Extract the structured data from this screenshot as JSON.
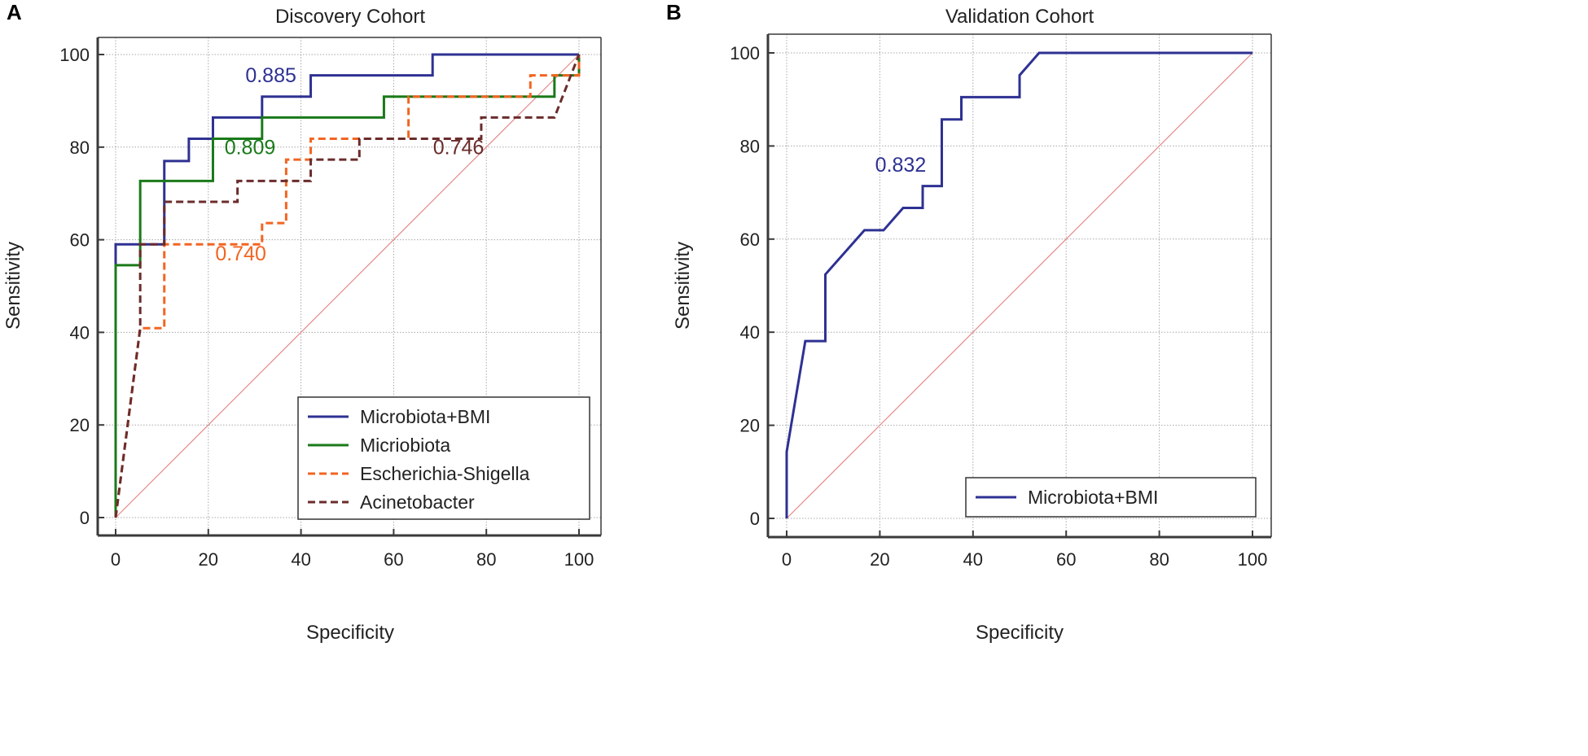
{
  "colors": {
    "microbiota_bmi": "#2e3192",
    "microbiota": "#1a7a1a",
    "escherichia": "#f26522",
    "acinetobacter": "#6b2c2c",
    "diagonal": "#e58a8a",
    "grid": "#a8a8a8",
    "axis": "#3a3a3a"
  },
  "chart_data": [
    {
      "panel_label": "A",
      "type": "line",
      "title": "Discovery Cohort",
      "xlabel": "Specificity",
      "ylabel": "Sensitivity",
      "xlim": [
        0,
        100
      ],
      "ylim": [
        0,
        100
      ],
      "xticks": [
        "0",
        "20",
        "40",
        "60",
        "80",
        "100"
      ],
      "yticks": [
        "0",
        "20",
        "40",
        "60",
        "80",
        "100"
      ],
      "grid": true,
      "reference_line": true,
      "legend_position": "bottom-right",
      "series": [
        {
          "name": "Microbiota+BMI",
          "color_key": "microbiota_bmi",
          "dash": "solid",
          "auc_label": "0.885",
          "auc_at": [
            28,
            94
          ],
          "points": [
            [
              0,
              0
            ],
            [
              0,
              59
            ],
            [
              10.5,
              59
            ],
            [
              10.5,
              77
            ],
            [
              15.8,
              77
            ],
            [
              15.8,
              81.8
            ],
            [
              21,
              81.8
            ],
            [
              21,
              86.4
            ],
            [
              31.6,
              86.4
            ],
            [
              31.6,
              90.9
            ],
            [
              42.1,
              90.9
            ],
            [
              42.1,
              95.5
            ],
            [
              68.4,
              95.5
            ],
            [
              68.4,
              100
            ],
            [
              100,
              100
            ]
          ]
        },
        {
          "name": "Micriobiota",
          "color_key": "microbiota",
          "dash": "solid",
          "auc_label": "0.809",
          "auc_at": [
            23.5,
            78.5
          ],
          "points": [
            [
              0,
              0
            ],
            [
              0,
              54.5
            ],
            [
              5.3,
              54.5
            ],
            [
              5.3,
              72.7
            ],
            [
              21,
              72.7
            ],
            [
              21,
              81.8
            ],
            [
              31.6,
              81.8
            ],
            [
              31.6,
              86.4
            ],
            [
              57.9,
              86.4
            ],
            [
              57.9,
              90.9
            ],
            [
              94.7,
              90.9
            ],
            [
              94.7,
              95.5
            ],
            [
              100,
              95.5
            ],
            [
              100,
              100
            ]
          ]
        },
        {
          "name": "Escherichia-Shigella",
          "color_key": "escherichia",
          "dash": "dashed",
          "auc_label": "0.740",
          "auc_at": [
            21.5,
            55.5
          ],
          "points": [
            [
              0,
              0
            ],
            [
              5.3,
              40.9
            ],
            [
              10.5,
              40.9
            ],
            [
              10.5,
              59
            ],
            [
              31.6,
              59
            ],
            [
              31.6,
              63.6
            ],
            [
              36.8,
              63.6
            ],
            [
              36.8,
              77.3
            ],
            [
              42.1,
              77.3
            ],
            [
              42.1,
              81.8
            ],
            [
              63.2,
              81.8
            ],
            [
              63.2,
              90.9
            ],
            [
              89.5,
              90.9
            ],
            [
              89.5,
              95.5
            ],
            [
              100,
              95.5
            ],
            [
              100,
              100
            ]
          ]
        },
        {
          "name": "Acinetobacter",
          "color_key": "acinetobacter",
          "dash": "dashed",
          "auc_label": "0.746",
          "auc_at": [
            68.5,
            78.5
          ],
          "points": [
            [
              0,
              0
            ],
            [
              5.3,
              40.9
            ],
            [
              5.3,
              59
            ],
            [
              10.5,
              59
            ],
            [
              10.5,
              68.2
            ],
            [
              26.3,
              68.2
            ],
            [
              26.3,
              72.7
            ],
            [
              42.1,
              72.7
            ],
            [
              42.1,
              77.3
            ],
            [
              52.6,
              77.3
            ],
            [
              52.6,
              81.8
            ],
            [
              78.9,
              81.8
            ],
            [
              78.9,
              86.4
            ],
            [
              94.7,
              86.4
            ],
            [
              100,
              100
            ]
          ]
        }
      ]
    },
    {
      "panel_label": "B",
      "type": "line",
      "title": "Validation Cohort",
      "xlabel": "Specificity",
      "ylabel": "Sensitivity",
      "xlim": [
        0,
        100
      ],
      "ylim": [
        0,
        100
      ],
      "xticks": [
        "0",
        "20",
        "40",
        "60",
        "80",
        "100"
      ],
      "yticks": [
        "0",
        "20",
        "40",
        "60",
        "80",
        "100"
      ],
      "grid": true,
      "reference_line": true,
      "legend_position": "bottom-right",
      "series": [
        {
          "name": "Microbiota+BMI",
          "color_key": "microbiota_bmi",
          "dash": "solid",
          "auc_label": "0.832",
          "auc_at": [
            19,
            74.5
          ],
          "points": [
            [
              0,
              0
            ],
            [
              0,
              14.3
            ],
            [
              4,
              38.1
            ],
            [
              8.3,
              38.1
            ],
            [
              8.3,
              52.4
            ],
            [
              16.7,
              61.9
            ],
            [
              20.8,
              61.9
            ],
            [
              25,
              66.7
            ],
            [
              29.2,
              66.7
            ],
            [
              29.2,
              71.4
            ],
            [
              33.3,
              71.4
            ],
            [
              33.3,
              85.7
            ],
            [
              37.5,
              85.7
            ],
            [
              37.5,
              90.5
            ],
            [
              50,
              90.5
            ],
            [
              50,
              95.2
            ],
            [
              54.2,
              100
            ],
            [
              100,
              100
            ]
          ]
        }
      ]
    }
  ]
}
